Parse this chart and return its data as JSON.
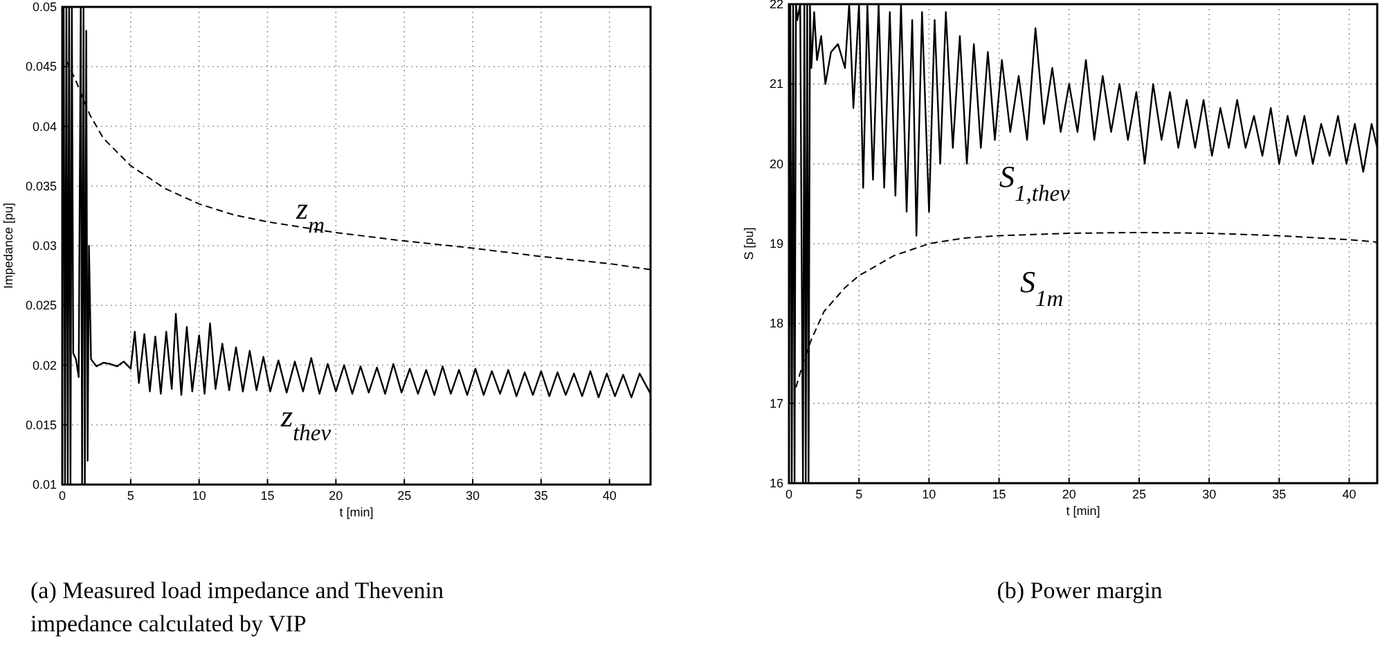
{
  "chart_data": [
    {
      "type": "line",
      "xlabel": "t [min]",
      "ylabel": "Impedance [pu]",
      "xlim": [
        0,
        43
      ],
      "ylim": [
        0.01,
        0.05
      ],
      "xticks": [
        0,
        5,
        10,
        15,
        20,
        25,
        30,
        35,
        40
      ],
      "yticks": [
        0.01,
        0.015,
        0.02,
        0.025,
        0.03,
        0.035,
        0.04,
        0.045,
        0.05
      ],
      "grid": true,
      "marker": "none",
      "series": [
        {
          "name": "z$_{thev}$",
          "color": "#000000",
          "line_style": "solid",
          "x": [
            0,
            0.1,
            0.2,
            0.3,
            0.4,
            0.5,
            0.6,
            0.7,
            0.8,
            1.0,
            1.2,
            1.35,
            1.45,
            1.55,
            1.65,
            1.75,
            1.85,
            1.95,
            2.1,
            2.5,
            3,
            3.5,
            4,
            4.5,
            5,
            5.3,
            5.6,
            6,
            6.4,
            6.8,
            7.2,
            7.6,
            8,
            8.3,
            8.7,
            9.1,
            9.5,
            10,
            10.4,
            10.8,
            11.2,
            11.7,
            12.2,
            12.7,
            13.2,
            13.7,
            14.2,
            14.7,
            15.2,
            15.8,
            16.4,
            17,
            17.6,
            18.2,
            18.8,
            19.4,
            20,
            20.6,
            21.2,
            21.8,
            22.4,
            23,
            23.6,
            24.2,
            24.8,
            25.4,
            26,
            26.6,
            27.2,
            27.8,
            28.4,
            29,
            29.6,
            30.2,
            30.8,
            31.4,
            32,
            32.6,
            33.2,
            33.8,
            34.4,
            35,
            35.6,
            36.2,
            36.8,
            37.4,
            38,
            38.6,
            39.2,
            39.8,
            40.4,
            41,
            41.6,
            42.2,
            43
          ],
          "values": [
            0.02,
            0.05,
            0.01,
            0.05,
            0.01,
            0.05,
            0.01,
            0.05,
            0.021,
            0.0205,
            0.019,
            0.05,
            0.01,
            0.05,
            0.01,
            0.048,
            0.012,
            0.03,
            0.0205,
            0.0199,
            0.0202,
            0.0201,
            0.0199,
            0.0203,
            0.0197,
            0.0228,
            0.0185,
            0.0226,
            0.0178,
            0.0224,
            0.0176,
            0.0228,
            0.018,
            0.0243,
            0.0175,
            0.0232,
            0.0178,
            0.0225,
            0.0176,
            0.0235,
            0.018,
            0.0218,
            0.0179,
            0.0215,
            0.0178,
            0.0212,
            0.0179,
            0.0207,
            0.0178,
            0.0204,
            0.0177,
            0.0203,
            0.0178,
            0.0206,
            0.0176,
            0.0201,
            0.0178,
            0.02,
            0.0176,
            0.0199,
            0.0177,
            0.0198,
            0.0176,
            0.0201,
            0.0177,
            0.0197,
            0.0176,
            0.0196,
            0.0175,
            0.0199,
            0.0176,
            0.0196,
            0.0175,
            0.0197,
            0.0175,
            0.0195,
            0.0176,
            0.0196,
            0.0174,
            0.0194,
            0.0175,
            0.0195,
            0.0174,
            0.0194,
            0.0175,
            0.0193,
            0.0174,
            0.0195,
            0.0173,
            0.0193,
            0.0174,
            0.0192,
            0.0173,
            0.0193,
            0.0176
          ]
        },
        {
          "name": "z$_{m}$",
          "color": "#000000",
          "line_style": "dashed",
          "x": [
            0.3,
            1,
            2,
            3,
            5,
            7.5,
            10,
            12.5,
            15,
            20,
            25,
            30,
            35,
            40,
            43
          ],
          "values": [
            0.0455,
            0.0438,
            0.041,
            0.039,
            0.0367,
            0.0348,
            0.0335,
            0.0326,
            0.032,
            0.0311,
            0.0304,
            0.0298,
            0.0291,
            0.0285,
            0.028
          ]
        }
      ],
      "annotations": [
        "(a) Measured load impedance and Thevenin impedance calculated by VIP"
      ]
    },
    {
      "type": "line",
      "xlabel": "t [min]",
      "ylabel": "S [pu]",
      "xlim": [
        0,
        42
      ],
      "ylim": [
        16,
        22
      ],
      "xticks": [
        0,
        5,
        10,
        15,
        20,
        25,
        30,
        35,
        40
      ],
      "yticks": [
        16,
        17,
        18,
        19,
        20,
        21,
        22
      ],
      "grid": true,
      "marker": "none",
      "series": [
        {
          "name": "S$_{1,thev}$",
          "color": "#000000",
          "line_style": "solid",
          "x": [
            0,
            0.1,
            0.2,
            0.3,
            0.4,
            0.5,
            0.6,
            0.8,
            1.0,
            1.1,
            1.2,
            1.3,
            1.4,
            1.5,
            1.6,
            1.8,
            2.0,
            2.3,
            2.6,
            3,
            3.5,
            4,
            4.3,
            4.6,
            5,
            5.3,
            5.6,
            6,
            6.4,
            6.8,
            7.2,
            7.6,
            8,
            8.4,
            8.8,
            9.1,
            9.5,
            10,
            10.4,
            10.8,
            11.2,
            11.7,
            12.2,
            12.7,
            13.2,
            13.7,
            14.2,
            14.7,
            15.2,
            15.8,
            16.4,
            17,
            17.6,
            18.2,
            18.8,
            19.4,
            20,
            20.6,
            21.2,
            21.8,
            22.4,
            23,
            23.6,
            24.2,
            24.8,
            25.4,
            26,
            26.6,
            27.2,
            27.8,
            28.4,
            29,
            29.6,
            30.2,
            30.8,
            31.4,
            32,
            32.6,
            33.2,
            33.8,
            34.4,
            35,
            35.6,
            36.2,
            36.8,
            37.4,
            38,
            38.6,
            39.2,
            39.8,
            40.4,
            41,
            41.6,
            42
          ],
          "values": [
            17,
            22,
            16,
            22,
            16,
            22,
            21.8,
            22,
            16,
            22,
            16,
            22,
            16,
            22,
            21.2,
            21.9,
            21.3,
            21.6,
            21.0,
            21.4,
            21.5,
            21.2,
            22,
            20.7,
            22,
            19.7,
            22,
            19.8,
            22,
            19.7,
            21.9,
            19.6,
            22,
            19.4,
            21.8,
            19.1,
            21.9,
            19.4,
            21.8,
            20.0,
            21.9,
            20.2,
            21.6,
            20.0,
            21.5,
            20.2,
            21.4,
            20.3,
            21.3,
            20.4,
            21.1,
            20.3,
            21.7,
            20.5,
            21.2,
            20.4,
            21.0,
            20.4,
            21.3,
            20.3,
            21.1,
            20.4,
            21.0,
            20.3,
            20.9,
            20.0,
            21.0,
            20.3,
            20.9,
            20.2,
            20.8,
            20.2,
            20.8,
            20.1,
            20.7,
            20.2,
            20.8,
            20.2,
            20.6,
            20.1,
            20.7,
            20.0,
            20.6,
            20.1,
            20.6,
            20.0,
            20.5,
            20.1,
            20.6,
            20.0,
            20.5,
            19.9,
            20.5,
            20.2
          ]
        },
        {
          "name": "S$_{1m}$",
          "color": "#000000",
          "line_style": "dashed",
          "x": [
            0.5,
            1,
            1.6,
            2.5,
            4,
            5,
            7.5,
            10,
            12.5,
            15,
            20,
            25,
            30,
            35,
            40,
            42
          ],
          "values": [
            17.2,
            17.5,
            17.8,
            18.15,
            18.45,
            18.6,
            18.85,
            19.0,
            19.07,
            19.1,
            19.13,
            19.14,
            19.13,
            19.1,
            19.05,
            19.02
          ]
        }
      ],
      "annotations": [
        "(b) Power margin"
      ]
    }
  ]
}
